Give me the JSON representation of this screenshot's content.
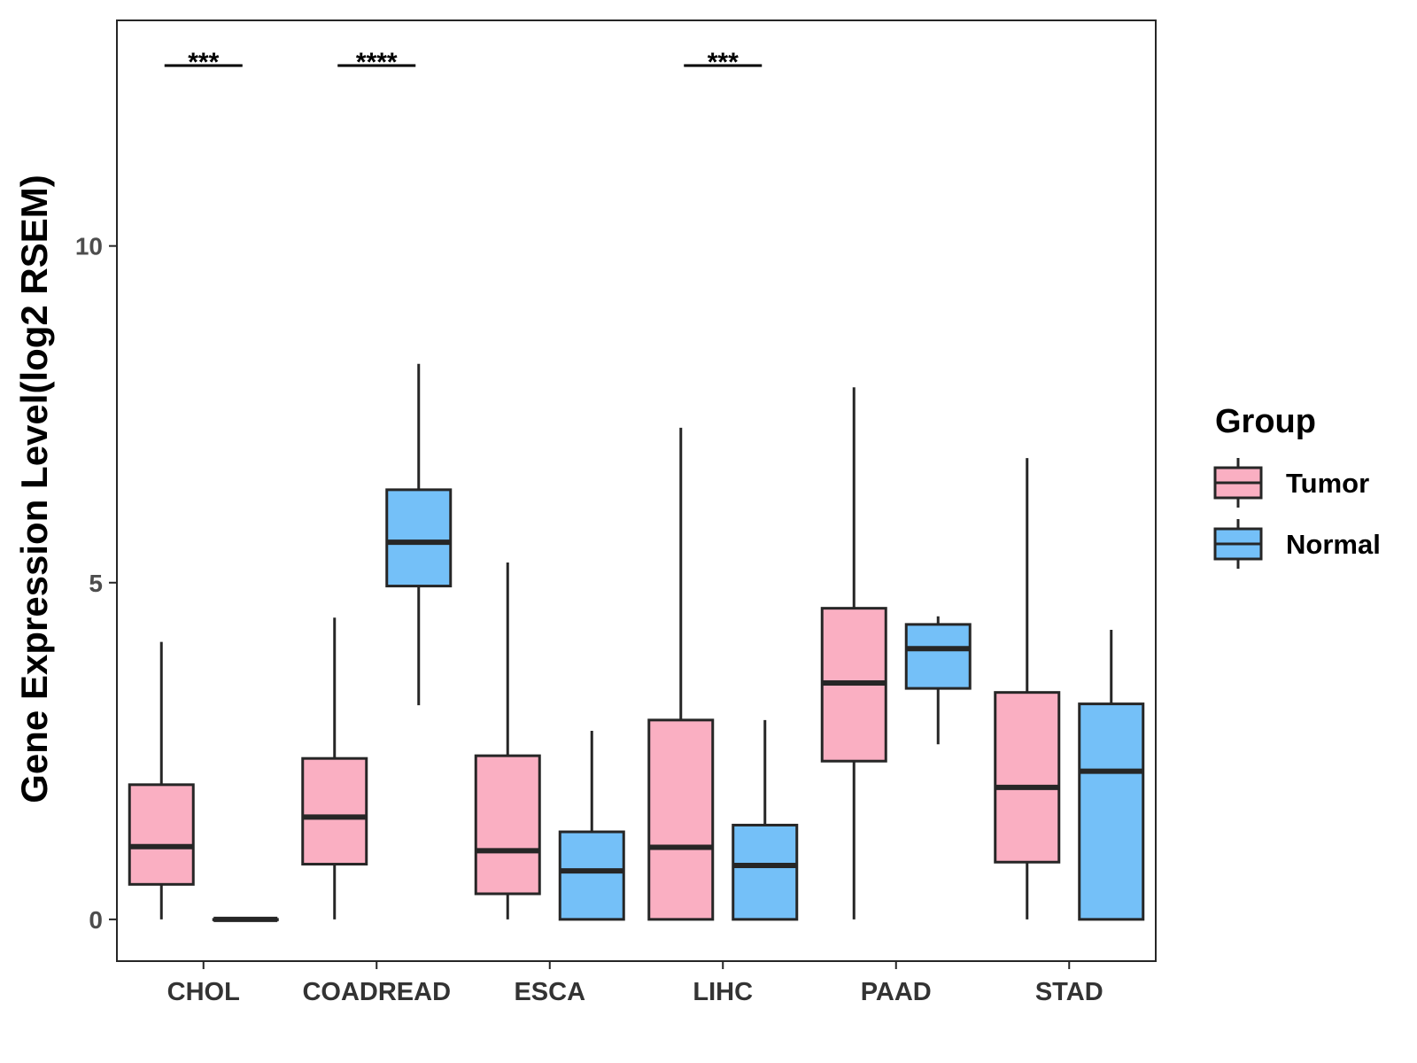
{
  "chart_data": {
    "type": "boxplot",
    "title": "",
    "xlabel": "",
    "ylabel": "Gene Expression Level(log2 RSEM)",
    "ylim": [
      -0.62,
      13.35
    ],
    "yticks": [
      0,
      5,
      10
    ],
    "categories": [
      "CHOL",
      "COADREAD",
      "ESCA",
      "LIHC",
      "PAAD",
      "STAD"
    ],
    "legend": {
      "title": "Group",
      "position": "right",
      "entries": [
        {
          "name": "Tumor",
          "color": "#FAAFC2"
        },
        {
          "name": "Normal",
          "color": "#74C0F8"
        }
      ]
    },
    "series": [
      {
        "name": "Tumor",
        "color": "#FAAFC2",
        "boxes": [
          {
            "category": "CHOL",
            "min": 0,
            "q1": 0.52,
            "median": 1.08,
            "q3": 2.0,
            "max": 4.12
          },
          {
            "category": "COADREAD",
            "min": 0,
            "q1": 0.82,
            "median": 1.52,
            "q3": 2.39,
            "max": 4.48
          },
          {
            "category": "ESCA",
            "min": 0,
            "q1": 0.38,
            "median": 1.02,
            "q3": 2.43,
            "max": 5.3
          },
          {
            "category": "LIHC",
            "min": 0,
            "q1": 0,
            "median": 1.07,
            "q3": 2.96,
            "max": 7.3
          },
          {
            "category": "PAAD",
            "min": 0,
            "q1": 2.35,
            "median": 3.51,
            "q3": 4.62,
            "max": 7.9
          },
          {
            "category": "STAD",
            "min": 0,
            "q1": 0.85,
            "median": 1.96,
            "q3": 3.37,
            "max": 6.85
          }
        ]
      },
      {
        "name": "Normal",
        "color": "#74C0F8",
        "boxes": [
          {
            "category": "CHOL",
            "min": 0,
            "q1": 0,
            "median": 0,
            "q3": 0,
            "max": 0
          },
          {
            "category": "COADREAD",
            "min": 3.18,
            "q1": 4.95,
            "median": 5.6,
            "q3": 6.38,
            "max": 8.25
          },
          {
            "category": "ESCA",
            "min": 0,
            "q1": 0,
            "median": 0.72,
            "q3": 1.3,
            "max": 2.8
          },
          {
            "category": "LIHC",
            "min": 0,
            "q1": 0,
            "median": 0.8,
            "q3": 1.4,
            "max": 2.96
          },
          {
            "category": "PAAD",
            "min": 2.6,
            "q1": 3.43,
            "median": 4.02,
            "q3": 4.38,
            "max": 4.5
          },
          {
            "category": "STAD",
            "min": 0,
            "q1": 0,
            "median": 2.2,
            "q3": 3.2,
            "max": 4.3
          }
        ]
      }
    ],
    "significance": [
      {
        "category": "CHOL",
        "label": "***"
      },
      {
        "category": "COADREAD",
        "label": "****"
      },
      {
        "category": "LIHC",
        "label": "***"
      }
    ]
  }
}
